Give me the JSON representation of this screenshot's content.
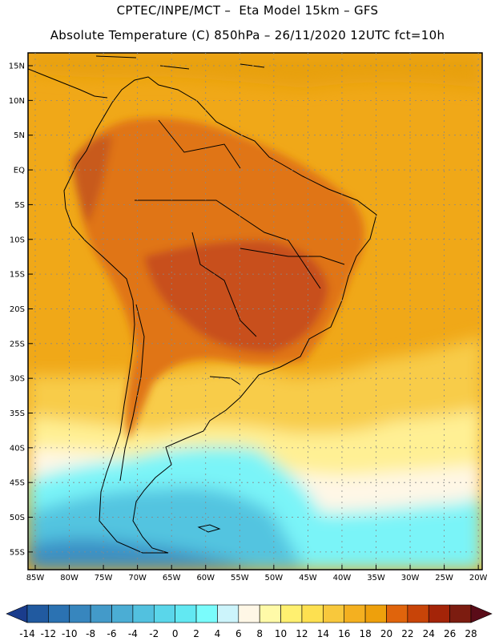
{
  "title": {
    "line1": "CPTEC/INPE/MCT –  Eta Model 15km – GFS",
    "line2": "Absolute Temperature (C) 850hPa – 26/11/2020 12UTC fct=10h"
  },
  "map": {
    "latitude_labels": [
      "15N",
      "10N",
      "5N",
      "EQ",
      "5S",
      "10S",
      "15S",
      "20S",
      "25S",
      "30S",
      "35S",
      "40S",
      "45S",
      "50S",
      "55S"
    ],
    "longitude_labels": [
      "85W",
      "80W",
      "75W",
      "70W",
      "65W",
      "60W",
      "55W",
      "50W",
      "45W",
      "40W",
      "35W",
      "30W",
      "25W",
      "20W"
    ]
  },
  "colorbar": {
    "tick_labels": [
      "-14",
      "-12",
      "-10",
      "-8",
      "-6",
      "-4",
      "-2",
      "0",
      "2",
      "4",
      "6",
      "8",
      "10",
      "12",
      "14",
      "16",
      "18",
      "20",
      "22",
      "24",
      "26",
      "28"
    ],
    "colors": [
      "#1a3c8c",
      "#215aa0",
      "#2b72b2",
      "#3786be",
      "#439ac9",
      "#4badd4",
      "#52c1df",
      "#5ad6ea",
      "#62e8f2",
      "#7afcfc",
      "#ccf4fb",
      "#fff7e6",
      "#fffaa8",
      "#fff070",
      "#fde050",
      "#f8c83c",
      "#f4b020",
      "#eea00c",
      "#e0640c",
      "#c84408",
      "#a42408",
      "#7c1c10",
      "#5a0c18"
    ]
  }
}
